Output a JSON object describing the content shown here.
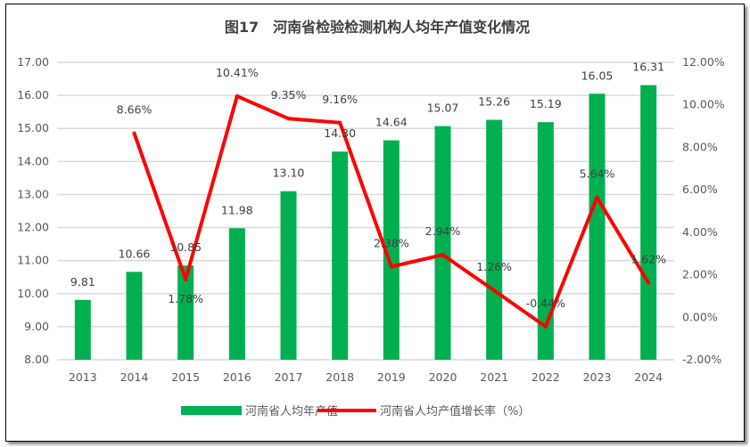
{
  "chart_data": {
    "type": "bar+line",
    "title": "图17　河南省检验检测机构人均年产值变化情况",
    "categories": [
      "2013",
      "2014",
      "2015",
      "2016",
      "2017",
      "2018",
      "2019",
      "2020",
      "2021",
      "2022",
      "2023",
      "2024"
    ],
    "series": [
      {
        "name": "河南省人均年产值",
        "type": "bar",
        "axis": "left",
        "color": "#00B050",
        "values": [
          9.81,
          10.66,
          10.85,
          11.98,
          13.1,
          14.3,
          14.64,
          15.07,
          15.26,
          15.19,
          16.05,
          16.31
        ],
        "labels": [
          "9.81",
          "10.66",
          "10.85",
          "11.98",
          "13.10",
          "14.30",
          "14.64",
          "15.07",
          "15.26",
          "15.19",
          "16.05",
          "16.31"
        ]
      },
      {
        "name": "河南省人均产值增长率（%）",
        "type": "line",
        "axis": "right",
        "color": "#FF0000",
        "values": [
          null,
          8.66,
          1.78,
          10.41,
          9.35,
          9.16,
          2.38,
          2.94,
          1.26,
          -0.44,
          5.64,
          1.62
        ],
        "labels": [
          "",
          "8.66%",
          "1.78%",
          "10.41%",
          "9.35%",
          "9.16%",
          "2.38%",
          "2.94%",
          "1.26%",
          "-0.44%",
          "5.64%",
          "1.62%"
        ]
      }
    ],
    "y_left": {
      "min": 8,
      "max": 17,
      "step": 1,
      "ticks": [
        "8.00",
        "9.00",
        "10.00",
        "11.00",
        "12.00",
        "13.00",
        "14.00",
        "15.00",
        "16.00",
        "17.00"
      ]
    },
    "y_right": {
      "min": -2,
      "max": 12,
      "step": 2,
      "ticks": [
        "-2.00%",
        "0.00%",
        "2.00%",
        "4.00%",
        "6.00%",
        "8.00%",
        "10.00%",
        "12.00%"
      ]
    },
    "grid": true,
    "legend": "bottom"
  }
}
